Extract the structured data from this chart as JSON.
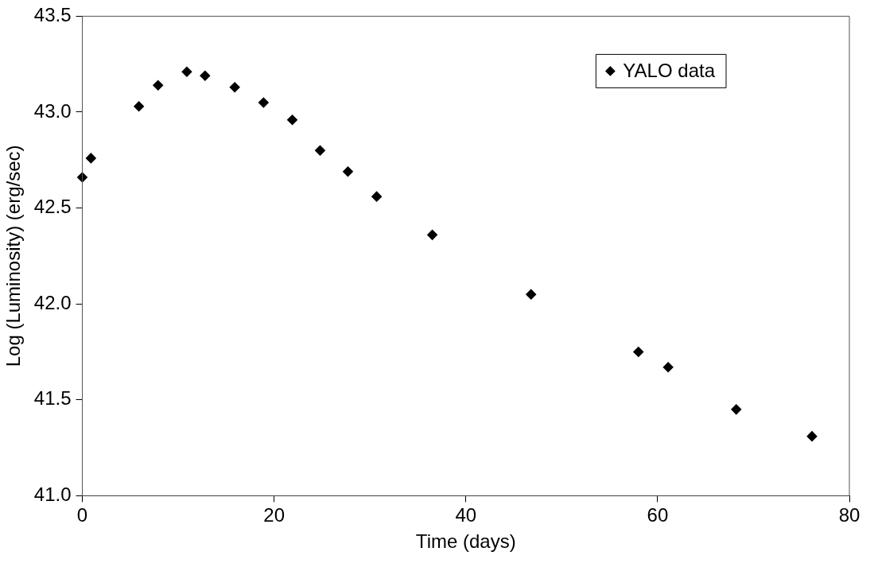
{
  "chart_data": {
    "type": "scatter",
    "xlabel": "Time (days)",
    "ylabel": "Log (Luminosity) (erg/sec)",
    "x": [
      0,
      0.9,
      5.9,
      7.9,
      10.9,
      12.8,
      15.9,
      18.9,
      21.9,
      24.8,
      27.7,
      30.7,
      36.5,
      46.8,
      58.0,
      61.1,
      68.2,
      76.1
    ],
    "series": [
      {
        "name": "YALO data",
        "color": "#000000",
        "values": [
          42.66,
          42.76,
          43.03,
          43.14,
          43.21,
          43.19,
          43.13,
          43.05,
          42.96,
          42.8,
          42.69,
          42.56,
          42.36,
          42.05,
          41.75,
          41.67,
          41.45,
          41.31
        ]
      }
    ],
    "xlim": [
      0,
      80
    ],
    "xticks": [
      0,
      20,
      40,
      60,
      80
    ],
    "ylim": [
      41,
      43.5
    ],
    "yticks": [
      {
        "value": 41,
        "label": "41.0"
      },
      41.5,
      {
        "value": 42,
        "label": "42.0"
      },
      42.5,
      {
        "value": 43,
        "label": "43.0"
      },
      43.5
    ],
    "marker": "diamond",
    "legend": "top right",
    "grid": false
  }
}
